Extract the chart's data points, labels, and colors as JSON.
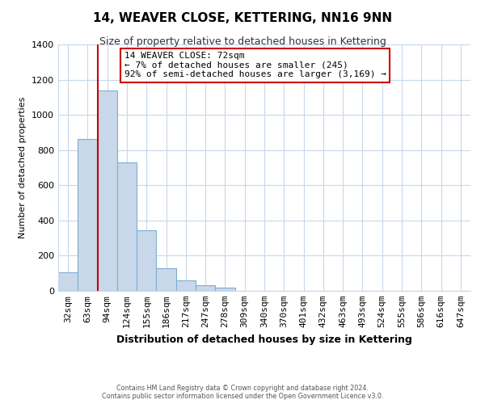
{
  "title": "14, WEAVER CLOSE, KETTERING, NN16 9NN",
  "subtitle": "Size of property relative to detached houses in Kettering",
  "xlabel": "Distribution of detached houses by size in Kettering",
  "ylabel": "Number of detached properties",
  "bar_labels": [
    "32sqm",
    "63sqm",
    "94sqm",
    "124sqm",
    "155sqm",
    "186sqm",
    "217sqm",
    "247sqm",
    "278sqm",
    "309sqm",
    "340sqm",
    "370sqm",
    "401sqm",
    "432sqm",
    "463sqm",
    "493sqm",
    "524sqm",
    "555sqm",
    "586sqm",
    "616sqm",
    "647sqm"
  ],
  "bar_values": [
    107,
    865,
    1140,
    730,
    345,
    130,
    60,
    30,
    17,
    0,
    0,
    0,
    0,
    0,
    0,
    0,
    0,
    0,
    0,
    0,
    0
  ],
  "bar_color": "#c8d8ea",
  "bar_edge_color": "#7bafd4",
  "ylim": [
    0,
    1400
  ],
  "yticks": [
    0,
    200,
    400,
    600,
    800,
    1000,
    1200,
    1400
  ],
  "vline_color": "#cc0000",
  "annotation_title": "14 WEAVER CLOSE: 72sqm",
  "annotation_line1": "← 7% of detached houses are smaller (245)",
  "annotation_line2": "92% of semi-detached houses are larger (3,169) →",
  "annotation_box_color": "#ffffff",
  "annotation_box_edge": "#cc0000",
  "footer_line1": "Contains HM Land Registry data © Crown copyright and database right 2024.",
  "footer_line2": "Contains public sector information licensed under the Open Government Licence v3.0.",
  "background_color": "#ffffff",
  "grid_color": "#c8d8ea"
}
